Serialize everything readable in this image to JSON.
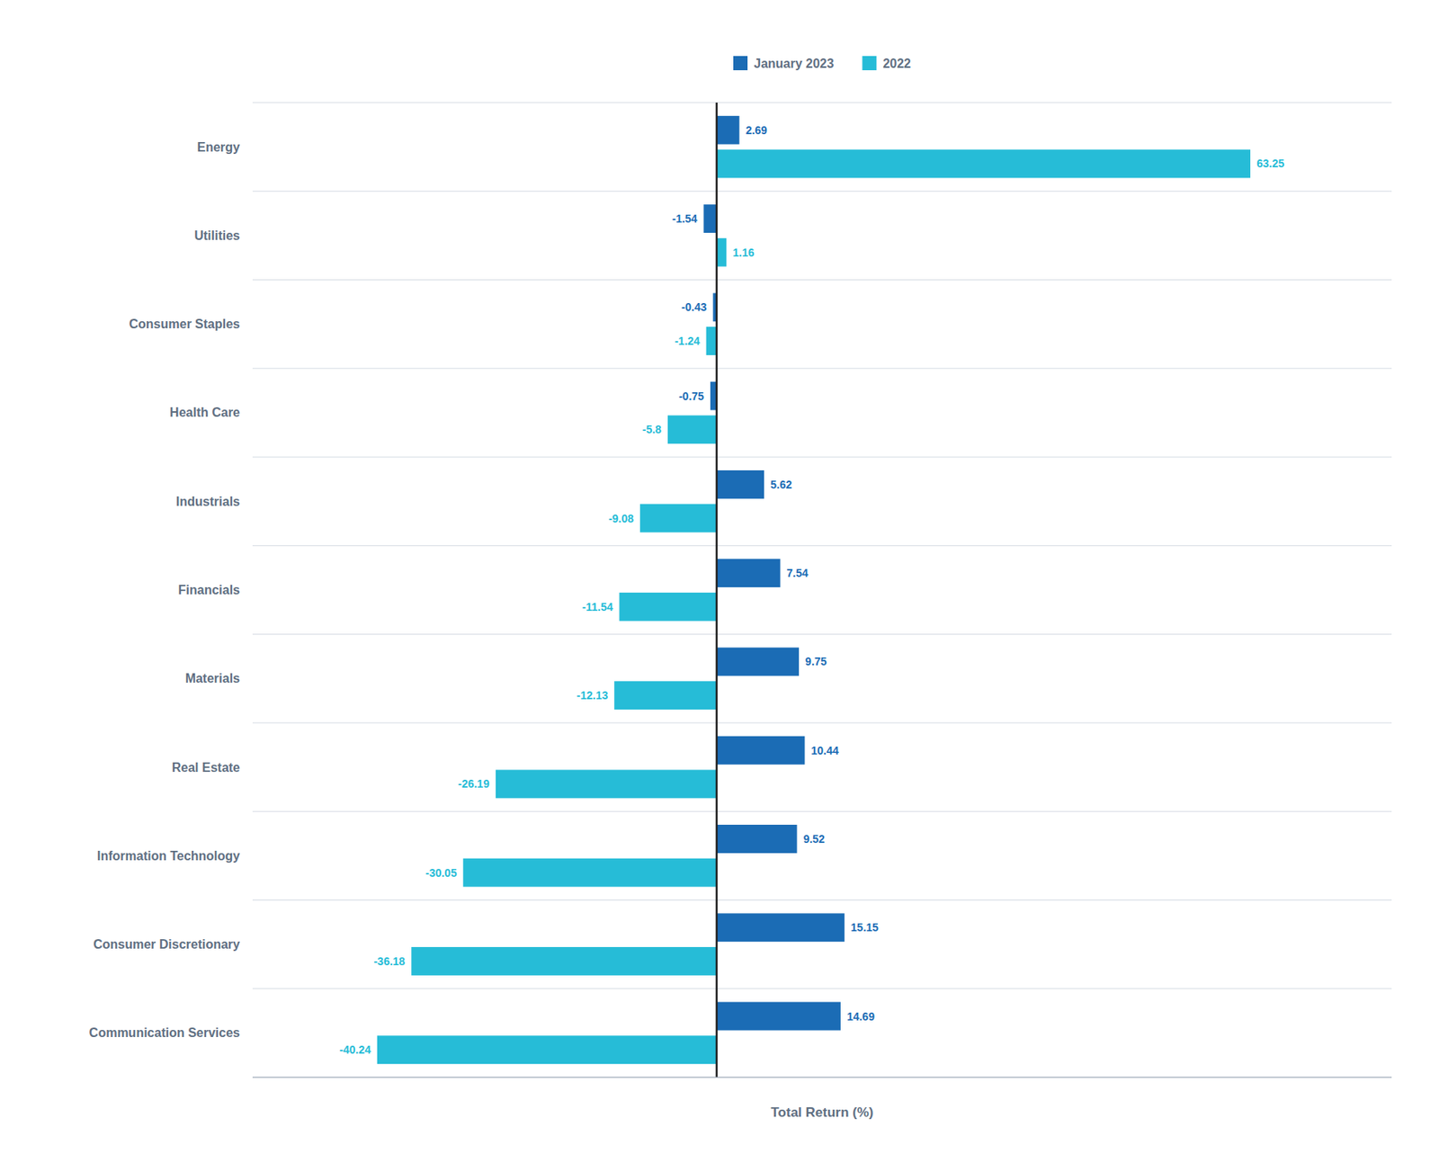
{
  "chart_data": {
    "type": "bar",
    "orientation": "horizontal",
    "x_label": "Total Return (%)",
    "categories": [
      "Energy",
      "Utilities",
      "Consumer Staples",
      "Health Care",
      "Industrials",
      "Financials",
      "Materials",
      "Real Estate",
      "Information Technology",
      "Consumer Discretionary",
      "Communication Services"
    ],
    "series": [
      {
        "name": "January 2023",
        "color": "#1B6CB5",
        "values": [
          2.69,
          -1.54,
          -0.43,
          -0.75,
          5.62,
          7.54,
          9.75,
          10.44,
          9.52,
          15.15,
          14.69
        ]
      },
      {
        "name": "2022",
        "color": "#26BCD7",
        "values": [
          63.25,
          1.16,
          -1.24,
          -5.8,
          -9.08,
          -11.54,
          -12.13,
          -26.19,
          -30.05,
          -36.18,
          -40.24
        ]
      }
    ],
    "xlim": [
      -55,
      80
    ],
    "grid": false,
    "legend": "top",
    "data_labels": true,
    "tick_labels": "y"
  }
}
